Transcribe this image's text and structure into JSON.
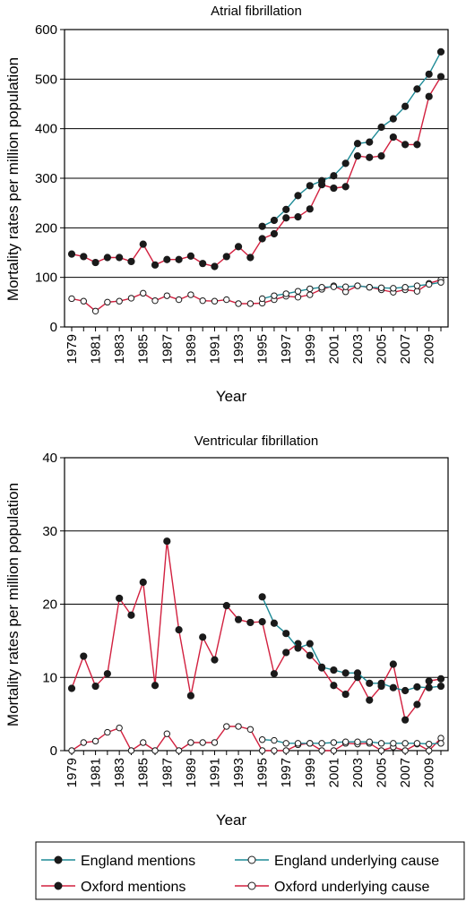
{
  "colors": {
    "england": "#1d8a96",
    "oxford": "#d2203f",
    "marker": "#1a1a1a",
    "grid": "#000000"
  },
  "legend": {
    "items": [
      {
        "label": "England mentions",
        "color": "#1d8a96",
        "marker": "filled"
      },
      {
        "label": "England underlying cause",
        "color": "#1d8a96",
        "marker": "open"
      },
      {
        "label": "Oxford mentions",
        "color": "#d2203f",
        "marker": "filled"
      },
      {
        "label": "Oxford underlying cause",
        "color": "#d2203f",
        "marker": "open"
      }
    ]
  },
  "chart_data": [
    {
      "type": "line",
      "title": "Atrial fibrillation",
      "xlabel": "Year",
      "ylabel": "Mortality rates per million population",
      "ylim": [
        0,
        600
      ],
      "yticks": [
        0,
        100,
        200,
        300,
        400,
        500,
        600
      ],
      "grid": true,
      "x": [
        1979,
        1980,
        1981,
        1982,
        1983,
        1984,
        1985,
        1986,
        1987,
        1988,
        1989,
        1990,
        1991,
        1992,
        1993,
        1994,
        1995,
        1996,
        1997,
        1998,
        1999,
        2000,
        2001,
        2002,
        2003,
        2004,
        2005,
        2006,
        2007,
        2008,
        2009,
        2010
      ],
      "xticks": [
        "1979",
        "1981",
        "1983",
        "1985",
        "1987",
        "1989",
        "1991",
        "1993",
        "1995",
        "1997",
        "1999",
        "2001",
        "2003",
        "2005",
        "2007",
        "2009"
      ],
      "series": [
        {
          "name": "England mentions",
          "x": [
            1995,
            1996,
            1997,
            1998,
            1999,
            2000,
            2001,
            2002,
            2003,
            2004,
            2005,
            2006,
            2007,
            2008,
            2009,
            2010
          ],
          "values": [
            203,
            215,
            237,
            265,
            285,
            295,
            305,
            330,
            370,
            373,
            403,
            420,
            445,
            480,
            510,
            555
          ]
        },
        {
          "name": "Oxford mentions",
          "x": [
            1979,
            1980,
            1981,
            1982,
            1983,
            1984,
            1985,
            1986,
            1987,
            1988,
            1989,
            1990,
            1991,
            1992,
            1993,
            1994,
            1995,
            1996,
            1997,
            1998,
            1999,
            2000,
            2001,
            2002,
            2003,
            2004,
            2005,
            2006,
            2007,
            2008,
            2009,
            2010
          ],
          "values": [
            147,
            142,
            130,
            140,
            140,
            132,
            167,
            125,
            136,
            136,
            143,
            128,
            122,
            142,
            162,
            140,
            178,
            188,
            220,
            222,
            238,
            287,
            280,
            283,
            345,
            342,
            345,
            383,
            368,
            368,
            465,
            505
          ]
        },
        {
          "name": "England underlying cause",
          "x": [
            1995,
            1996,
            1997,
            1998,
            1999,
            2000,
            2001,
            2002,
            2003,
            2004,
            2005,
            2006,
            2007,
            2008,
            2009,
            2010
          ],
          "values": [
            57,
            63,
            67,
            72,
            77,
            80,
            81,
            81,
            83,
            80,
            79,
            78,
            80,
            83,
            86,
            90
          ]
        },
        {
          "name": "Oxford underlying cause",
          "x": [
            1979,
            1980,
            1981,
            1982,
            1983,
            1984,
            1985,
            1986,
            1987,
            1988,
            1989,
            1990,
            1991,
            1992,
            1993,
            1994,
            1995,
            1996,
            1997,
            1998,
            1999,
            2000,
            2001,
            2002,
            2003,
            2004,
            2005,
            2006,
            2007,
            2008,
            2009,
            2010
          ],
          "values": [
            57,
            52,
            32,
            50,
            52,
            58,
            68,
            53,
            63,
            55,
            65,
            53,
            52,
            55,
            47,
            47,
            48,
            55,
            62,
            60,
            65,
            76,
            83,
            71,
            83,
            80,
            75,
            70,
            75,
            72,
            88,
            95
          ]
        }
      ]
    },
    {
      "type": "line",
      "title": "Ventricular fibrillation",
      "xlabel": "Year",
      "ylabel": "Mortality rates per million population",
      "ylim": [
        0,
        40
      ],
      "yticks": [
        0,
        10,
        20,
        30,
        40
      ],
      "grid": true,
      "x": [
        1979,
        1980,
        1981,
        1982,
        1983,
        1984,
        1985,
        1986,
        1987,
        1988,
        1989,
        1990,
        1991,
        1992,
        1993,
        1994,
        1995,
        1996,
        1997,
        1998,
        1999,
        2000,
        2001,
        2002,
        2003,
        2004,
        2005,
        2006,
        2007,
        2008,
        2009,
        2010
      ],
      "xticks": [
        "1979",
        "1981",
        "1983",
        "1985",
        "1987",
        "1989",
        "1991",
        "1993",
        "1995",
        "1997",
        "1999",
        "2001",
        "2003",
        "2005",
        "2007",
        "2009"
      ],
      "series": [
        {
          "name": "England mentions",
          "x": [
            1995,
            1996,
            1997,
            1998,
            1999,
            2000,
            2001,
            2002,
            2003,
            2004,
            2005,
            2006,
            2007,
            2008,
            2009,
            2010
          ],
          "values": [
            21.0,
            17.4,
            16.0,
            14.0,
            14.6,
            11.4,
            11.0,
            10.6,
            10.6,
            9.2,
            9.2,
            8.6,
            8.2,
            8.7,
            8.6,
            8.8
          ]
        },
        {
          "name": "Oxford mentions",
          "x": [
            1979,
            1980,
            1981,
            1982,
            1983,
            1984,
            1985,
            1986,
            1987,
            1988,
            1989,
            1990,
            1991,
            1992,
            1993,
            1994,
            1995,
            1996,
            1997,
            1998,
            1999,
            2000,
            2001,
            2002,
            2003,
            2004,
            2005,
            2006,
            2007,
            2008,
            2009,
            2010
          ],
          "values": [
            8.5,
            12.9,
            8.8,
            10.5,
            20.8,
            18.5,
            23.0,
            8.9,
            28.6,
            16.5,
            7.5,
            15.5,
            12.4,
            19.8,
            17.9,
            17.5,
            17.6,
            10.5,
            13.4,
            14.6,
            13.0,
            11.3,
            8.9,
            7.7,
            10.0,
            6.9,
            8.8,
            11.8,
            4.2,
            6.3,
            9.5,
            9.8
          ]
        },
        {
          "name": "England underlying cause",
          "x": [
            1995,
            1996,
            1997,
            1998,
            1999,
            2000,
            2001,
            2002,
            2003,
            2004,
            2005,
            2006,
            2007,
            2008,
            2009,
            2010
          ],
          "values": [
            1.5,
            1.4,
            1.0,
            1.0,
            1.0,
            1.0,
            1.1,
            1.2,
            1.2,
            1.2,
            1.0,
            1.0,
            1.0,
            1.0,
            0.9,
            1.0
          ]
        },
        {
          "name": "Oxford underlying cause",
          "x": [
            1979,
            1980,
            1981,
            1982,
            1983,
            1984,
            1985,
            1986,
            1987,
            1988,
            1989,
            1990,
            1991,
            1992,
            1993,
            1994,
            1995,
            1996,
            1997,
            1998,
            1999,
            2000,
            2001,
            2002,
            2003,
            2004,
            2005,
            2006,
            2007,
            2008,
            2009,
            2010
          ],
          "values": [
            0.0,
            1.1,
            1.3,
            2.5,
            3.1,
            0.0,
            1.1,
            0.0,
            2.3,
            0.0,
            1.1,
            1.1,
            1.1,
            3.3,
            3.3,
            2.9,
            0.0,
            0.0,
            0.0,
            0.8,
            1.0,
            0.0,
            0.0,
            1.0,
            0.9,
            1.0,
            0.0,
            0.5,
            0.0,
            0.9,
            0.0,
            1.7
          ]
        }
      ]
    }
  ]
}
